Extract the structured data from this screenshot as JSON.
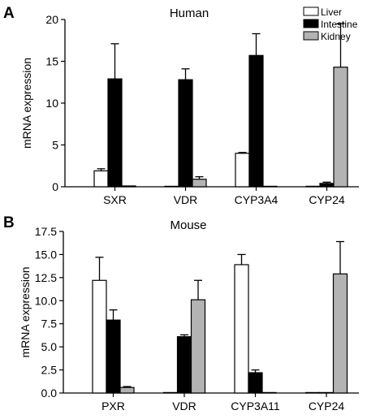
{
  "chart_data": [
    {
      "type": "bar",
      "panel_letter": "A",
      "title": "Human",
      "ylabel": "mRNA expression",
      "xlabel": "",
      "categories": [
        "SXR",
        "VDR",
        "CYP3A4",
        "CYP24"
      ],
      "ylim": [
        0,
        20
      ],
      "yticks": [
        "0",
        "5",
        "10",
        "15",
        "20"
      ],
      "error_bars": true,
      "legend": {
        "placement": "top-right"
      },
      "series": [
        {
          "name": "Liver",
          "color": "#ffffff",
          "values": [
            1.9,
            0.05,
            4.0,
            0.05
          ],
          "errors": [
            0.25,
            0.0,
            0.1,
            0.0
          ]
        },
        {
          "name": "Intestine",
          "color": "#000000",
          "values": [
            12.9,
            12.8,
            15.7,
            0.4
          ],
          "errors": [
            4.2,
            1.3,
            2.6,
            0.15
          ]
        },
        {
          "name": "Kidney",
          "color": "#b3b3b3",
          "values": [
            0.1,
            0.9,
            0.05,
            14.3
          ],
          "errors": [
            0.0,
            0.3,
            0.0,
            5.2
          ]
        }
      ]
    },
    {
      "type": "bar",
      "panel_letter": "B",
      "title": "Mouse",
      "ylabel": "mRNA expression",
      "xlabel": "",
      "categories": [
        "PXR",
        "VDR",
        "CYP3A11",
        "CYP24"
      ],
      "ylim": [
        0,
        17.5
      ],
      "yticks": [
        "0.0",
        "2.5",
        "5.0",
        "7.5",
        "10.0",
        "12.5",
        "15.0",
        "17.5"
      ],
      "error_bars": true,
      "series": [
        {
          "name": "Liver",
          "color": "#ffffff",
          "values": [
            12.2,
            0.05,
            13.9,
            0.05
          ],
          "errors": [
            2.5,
            0.0,
            1.1,
            0.0
          ]
        },
        {
          "name": "Intestine",
          "color": "#000000",
          "values": [
            7.9,
            6.1,
            2.2,
            0.05
          ],
          "errors": [
            1.1,
            0.2,
            0.3,
            0.0
          ]
        },
        {
          "name": "Kidney",
          "color": "#b3b3b3",
          "values": [
            0.6,
            10.1,
            0.0,
            12.9
          ],
          "errors": [
            0.1,
            2.1,
            0.0,
            3.5
          ]
        }
      ]
    }
  ]
}
